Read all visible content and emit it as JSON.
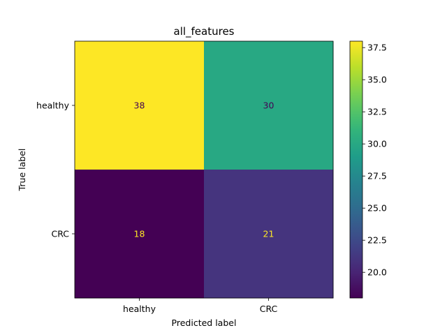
{
  "chart_data": {
    "type": "heatmap",
    "title": "all_features",
    "xlabel": "Predicted label",
    "ylabel": "True label",
    "x_categories": [
      "healthy",
      "CRC"
    ],
    "y_categories": [
      "healthy",
      "CRC"
    ],
    "values": [
      [
        38,
        30
      ],
      [
        18,
        21
      ]
    ],
    "colormap": "viridis",
    "colorbar": {
      "range": [
        18,
        38
      ],
      "ticks": [
        20.0,
        22.5,
        25.0,
        27.5,
        30.0,
        32.5,
        35.0,
        37.5
      ],
      "tick_labels": [
        "20.0",
        "22.5",
        "25.0",
        "27.5",
        "30.0",
        "32.5",
        "35.0",
        "37.5"
      ]
    },
    "label_colors": {
      "on_bright": "#440154",
      "on_dark": "#fde725"
    }
  }
}
